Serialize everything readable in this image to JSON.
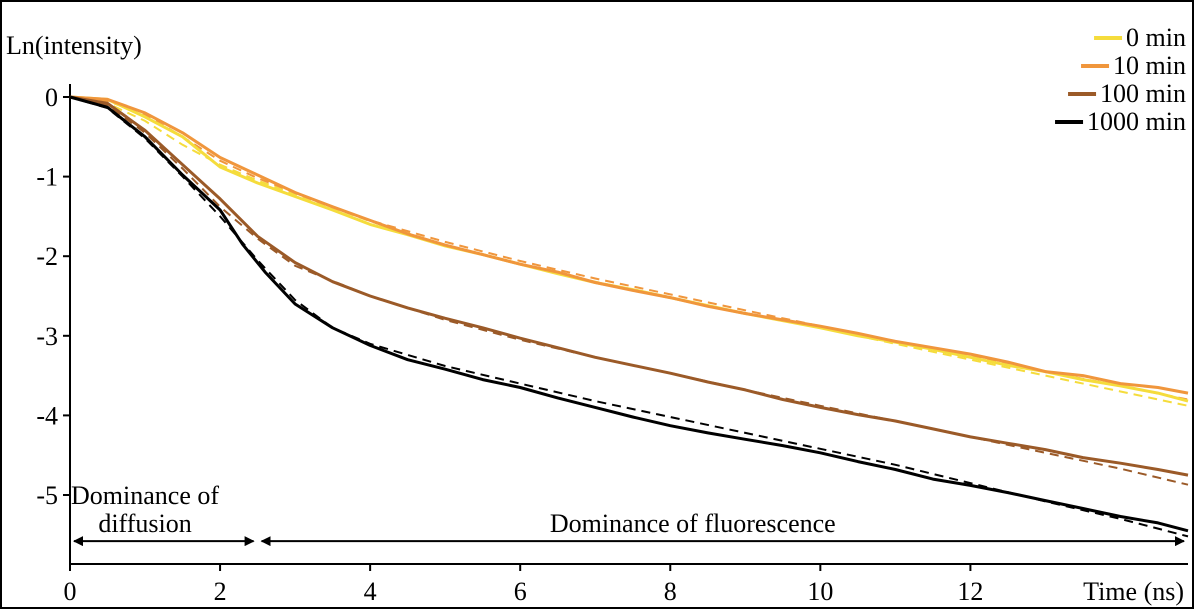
{
  "chart_data": {
    "type": "line",
    "ylabel": "Ln(intensity)",
    "xlabel": "Time (ns)",
    "xlim": [
      0,
      14.9
    ],
    "ylim": [
      -5.8,
      0.3
    ],
    "xticks": [
      0,
      2,
      4,
      6,
      8,
      10,
      12
    ],
    "yticks": [
      0,
      -1,
      -2,
      -3,
      -4,
      -5
    ],
    "xtick_labels": [
      "0",
      "2",
      "4",
      "6",
      "8",
      "10",
      "12"
    ],
    "ytick_labels": [
      "0",
      "-1",
      "-2",
      "-3",
      "-4",
      "-5"
    ],
    "legend_position": "top-right",
    "series": [
      {
        "name": "0 min",
        "color": "#f5dc3c",
        "x": [
          0,
          0.5,
          1.0,
          1.5,
          2.0,
          2.5,
          3.0,
          3.5,
          4.0,
          4.5,
          5.0,
          5.5,
          6.0,
          6.5,
          7.0,
          7.5,
          8.0,
          8.5,
          9.0,
          9.5,
          10.0,
          10.5,
          11.0,
          11.5,
          12.0,
          12.5,
          13.0,
          13.5,
          14.0,
          14.5,
          14.9
        ],
        "y": [
          0,
          -0.03,
          -0.25,
          -0.5,
          -0.88,
          -1.08,
          -1.25,
          -1.42,
          -1.6,
          -1.73,
          -1.87,
          -1.98,
          -2.1,
          -2.22,
          -2.33,
          -2.42,
          -2.52,
          -2.62,
          -2.72,
          -2.81,
          -2.9,
          -3.0,
          -3.08,
          -3.17,
          -3.27,
          -3.37,
          -3.45,
          -3.55,
          -3.63,
          -3.72,
          -3.82
        ]
      },
      {
        "name": "10 min",
        "color": "#f0963c",
        "x": [
          0,
          0.5,
          1.0,
          1.5,
          2.0,
          2.5,
          3.0,
          3.5,
          4.0,
          4.5,
          5.0,
          5.5,
          6.0,
          6.5,
          7.0,
          7.5,
          8.0,
          8.5,
          9.0,
          9.5,
          10.0,
          10.5,
          11.0,
          11.5,
          12.0,
          12.5,
          13.0,
          13.5,
          14.0,
          14.5,
          14.9
        ],
        "y": [
          0,
          -0.03,
          -0.2,
          -0.45,
          -0.76,
          -0.98,
          -1.2,
          -1.38,
          -1.55,
          -1.72,
          -1.86,
          -1.98,
          -2.1,
          -2.2,
          -2.33,
          -2.43,
          -2.52,
          -2.63,
          -2.72,
          -2.8,
          -2.88,
          -2.97,
          -3.07,
          -3.15,
          -3.23,
          -3.33,
          -3.45,
          -3.5,
          -3.6,
          -3.65,
          -3.72
        ]
      },
      {
        "name": "100 min",
        "color": "#9b5a28",
        "x": [
          0,
          0.5,
          1.0,
          1.5,
          2.0,
          2.5,
          3.0,
          3.5,
          4.0,
          4.5,
          5.0,
          5.5,
          6.0,
          6.5,
          7.0,
          7.5,
          8.0,
          8.5,
          9.0,
          9.5,
          10.0,
          10.5,
          11.0,
          11.5,
          12.0,
          12.5,
          13.0,
          13.5,
          14.0,
          14.5,
          14.9
        ],
        "y": [
          0,
          -0.08,
          -0.42,
          -0.85,
          -1.28,
          -1.75,
          -2.08,
          -2.32,
          -2.5,
          -2.65,
          -2.78,
          -2.9,
          -3.03,
          -3.15,
          -3.27,
          -3.37,
          -3.47,
          -3.58,
          -3.68,
          -3.8,
          -3.9,
          -3.99,
          -4.07,
          -4.17,
          -4.27,
          -4.35,
          -4.43,
          -4.53,
          -4.6,
          -4.68,
          -4.75
        ]
      },
      {
        "name": "1000 min",
        "color": "#000000",
        "x": [
          0,
          0.5,
          1.0,
          1.5,
          2.0,
          2.3,
          2.6,
          3.0,
          3.5,
          4.0,
          4.5,
          5.0,
          5.5,
          6.0,
          6.5,
          7.0,
          7.5,
          8.0,
          8.5,
          9.0,
          9.5,
          10.0,
          10.5,
          11.0,
          11.5,
          12.0,
          12.5,
          13.0,
          13.5,
          14.0,
          14.5,
          14.9
        ],
        "y": [
          0,
          -0.13,
          -0.5,
          -0.98,
          -1.42,
          -1.85,
          -2.2,
          -2.6,
          -2.9,
          -3.12,
          -3.3,
          -3.42,
          -3.55,
          -3.65,
          -3.78,
          -3.9,
          -4.02,
          -4.13,
          -4.22,
          -4.3,
          -4.38,
          -4.47,
          -4.58,
          -4.68,
          -4.8,
          -4.88,
          -4.97,
          -5.07,
          -5.17,
          -5.27,
          -5.35,
          -5.45
        ]
      }
    ],
    "fits": [
      {
        "series": "0 min",
        "color": "#f5dc3c",
        "x": [
          0,
          0.5,
          1.0,
          1.5,
          2.0,
          2.5,
          3.0,
          4.0,
          5.0,
          6.0,
          7.0,
          8.0,
          9.0,
          10.0,
          11.0,
          12.0,
          13.0,
          14.0,
          14.9
        ],
        "y": [
          0,
          -0.08,
          -0.3,
          -0.6,
          -0.85,
          -1.05,
          -1.22,
          -1.56,
          -1.86,
          -2.1,
          -2.32,
          -2.52,
          -2.72,
          -2.9,
          -3.1,
          -3.3,
          -3.5,
          -3.7,
          -3.88
        ]
      },
      {
        "series": "10 min",
        "color": "#f0963c",
        "x": [
          0,
          0.5,
          1.0,
          1.5,
          2.0,
          2.5,
          3.0,
          4.0,
          5.0,
          6.0,
          7.0,
          8.0,
          9.0,
          10.0,
          11.0,
          12.0,
          13.0,
          14.0,
          14.9
        ],
        "y": [
          0,
          -0.05,
          -0.22,
          -0.5,
          -0.8,
          -1.02,
          -1.2,
          -1.55,
          -1.82,
          -2.06,
          -2.28,
          -2.48,
          -2.68,
          -2.88,
          -3.07,
          -3.26,
          -3.45,
          -3.63,
          -3.8
        ]
      },
      {
        "series": "100 min",
        "color": "#9b5a28",
        "x": [
          0,
          0.5,
          1.0,
          1.5,
          2.0,
          2.5,
          3.0,
          4.0,
          5.0,
          6.0,
          7.0,
          8.0,
          9.0,
          10.0,
          11.0,
          12.0,
          13.0,
          14.0,
          14.9
        ],
        "y": [
          0,
          -0.1,
          -0.45,
          -0.9,
          -1.38,
          -1.78,
          -2.12,
          -2.5,
          -2.8,
          -3.05,
          -3.27,
          -3.47,
          -3.68,
          -3.88,
          -4.07,
          -4.27,
          -4.47,
          -4.67,
          -4.87
        ]
      },
      {
        "series": "1000 min",
        "color": "#000000",
        "x": [
          0,
          0.5,
          1.0,
          1.5,
          2.0,
          2.5,
          3.0,
          3.5,
          4.0,
          5.0,
          6.0,
          7.0,
          8.0,
          9.0,
          10.0,
          11.0,
          12.0,
          13.0,
          14.0,
          14.9
        ],
        "y": [
          0,
          -0.14,
          -0.52,
          -1.0,
          -1.5,
          -2.05,
          -2.55,
          -2.9,
          -3.1,
          -3.38,
          -3.6,
          -3.82,
          -4.02,
          -4.22,
          -4.42,
          -4.62,
          -4.85,
          -5.08,
          -5.3,
          -5.52
        ]
      }
    ],
    "annotations": [
      {
        "text": "Dominance of",
        "x": 1.0,
        "y": -5.0
      },
      {
        "text": "diffusion",
        "x": 1.0,
        "y": -5.35
      },
      {
        "text": "Dominance of fluorescence",
        "x": 8.3,
        "y": -5.35
      }
    ],
    "ranges": [
      {
        "from": 0,
        "to": 2.5,
        "y": -5.58
      },
      {
        "from": 2.5,
        "to": 14.9,
        "y": -5.58
      }
    ]
  }
}
